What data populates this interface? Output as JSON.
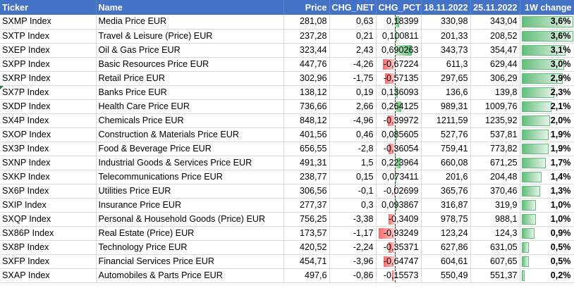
{
  "colors": {
    "header_bg": "#4472c4",
    "positive_bar": "#63be7b",
    "negative_bar": "#f8696b"
  },
  "headers": [
    "Ticker",
    "Name",
    "Price",
    "CHG_NET",
    "CHG_PCT_",
    "18.11.2022",
    "25.11.2022",
    "1W change"
  ],
  "rows": [
    {
      "ticker": "SXMP Index",
      "name": "Media Price EUR",
      "price": "281,08",
      "chg_net": "0,63",
      "chg_pct": "0,18399",
      "chg_pct_value": 0.18399,
      "d1": "330,98",
      "d2": "343,04",
      "w_change": "3,6%",
      "w_change_value": 3.6
    },
    {
      "ticker": "SXTP Index",
      "name": "Travel & Leisure (Price) EUR",
      "price": "237,28",
      "chg_net": "0,21",
      "chg_pct": "0,100811",
      "chg_pct_value": 0.100811,
      "d1": "201,33",
      "d2": "208,52",
      "w_change": "3,6%",
      "w_change_value": 3.6
    },
    {
      "ticker": "SXEP Index",
      "name": "Oil & Gas Price EUR",
      "price": "323,44",
      "chg_net": "2,43",
      "chg_pct": "0,690263",
      "chg_pct_value": 0.690263,
      "d1": "343,73",
      "d2": "354,47",
      "w_change": "3,1%",
      "w_change_value": 3.1
    },
    {
      "ticker": "SXPP Index",
      "name": "Basic Resources Price EUR",
      "price": "447,76",
      "chg_net": "-4,26",
      "chg_pct": "-0,67224",
      "chg_pct_value": -0.67224,
      "d1": "611,3",
      "d2": "629,44",
      "w_change": "3,0%",
      "w_change_value": 3.0
    },
    {
      "ticker": "SXRP Index",
      "name": "Retail Price EUR",
      "price": "302,96",
      "chg_net": "-1,75",
      "chg_pct": "-0,57135",
      "chg_pct_value": -0.57135,
      "d1": "297,65",
      "d2": "306,29",
      "w_change": "2,9%",
      "w_change_value": 2.9
    },
    {
      "ticker": "SX7P Index",
      "name": "Banks Price EUR",
      "price": "138,12",
      "chg_net": "0,19",
      "chg_pct": "0,136093",
      "chg_pct_value": 0.136093,
      "d1": "136,6",
      "d2": "139,8",
      "w_change": "2,3%",
      "w_change_value": 2.3
    },
    {
      "ticker": "SXDP Index",
      "name": "Health Care Price EUR",
      "price": "736,66",
      "chg_net": "2,66",
      "chg_pct": "0,264125",
      "chg_pct_value": 0.264125,
      "d1": "989,31",
      "d2": "1009,76",
      "w_change": "2,1%",
      "w_change_value": 2.1
    },
    {
      "ticker": "SX4P Index",
      "name": "Chemicals Price EUR",
      "price": "848,12",
      "chg_net": "-4,96",
      "chg_pct": "-0,39972",
      "chg_pct_value": -0.39972,
      "d1": "1211,59",
      "d2": "1235,92",
      "w_change": "2,0%",
      "w_change_value": 2.0
    },
    {
      "ticker": "SXOP Index",
      "name": "Construction & Materials Price EUR",
      "price": "401,56",
      "chg_net": "0,46",
      "chg_pct": "0,085605",
      "chg_pct_value": 0.085605,
      "d1": "527,76",
      "d2": "537,81",
      "w_change": "1,9%",
      "w_change_value": 1.9
    },
    {
      "ticker": "SX3P Index",
      "name": "Food & Beverage Price EUR",
      "price": "656,55",
      "chg_net": "-2,8",
      "chg_pct": "-0,36054",
      "chg_pct_value": -0.36054,
      "d1": "759,41",
      "d2": "773,82",
      "w_change": "1,9%",
      "w_change_value": 1.9
    },
    {
      "ticker": "SXNP Index",
      "name": "Industrial Goods & Services Price EUR",
      "price": "491,31",
      "chg_net": "1,5",
      "chg_pct": "0,223964",
      "chg_pct_value": 0.223964,
      "d1": "660,08",
      "d2": "671,25",
      "w_change": "1,7%",
      "w_change_value": 1.7
    },
    {
      "ticker": "SXKP Index",
      "name": "Telecommunications Price EUR",
      "price": "238,77",
      "chg_net": "0,15",
      "chg_pct": "0,073411",
      "chg_pct_value": 0.073411,
      "d1": "201,6",
      "d2": "204,48",
      "w_change": "1,4%",
      "w_change_value": 1.4
    },
    {
      "ticker": "SX6P Index",
      "name": "Utilities Price EUR",
      "price": "306,56",
      "chg_net": "-0,1",
      "chg_pct": "-0,02699",
      "chg_pct_value": -0.02699,
      "d1": "365,76",
      "d2": "370,46",
      "w_change": "1,3%",
      "w_change_value": 1.3
    },
    {
      "ticker": "SXIP Index",
      "name": "Insurance Price EUR",
      "price": "277,37",
      "chg_net": "0,3",
      "chg_pct": "0,093867",
      "chg_pct_value": 0.093867,
      "d1": "316,87",
      "d2": "319,9",
      "w_change": "1,0%",
      "w_change_value": 1.0
    },
    {
      "ticker": "SXQP Index",
      "name": "Personal & Household Goods (Price) EUR",
      "price": "756,25",
      "chg_net": "-3,38",
      "chg_pct": "-0,3409",
      "chg_pct_value": -0.3409,
      "d1": "978,75",
      "d2": "988,1",
      "w_change": "1,0%",
      "w_change_value": 1.0
    },
    {
      "ticker": "SX86P Index",
      "name": "Real Estate (Price) EUR",
      "price": "173,57",
      "chg_net": "-1,17",
      "chg_pct": "-0,93249",
      "chg_pct_value": -0.93249,
      "d1": "123,24",
      "d2": "124,3",
      "w_change": "0,9%",
      "w_change_value": 0.9
    },
    {
      "ticker": "SX8P Index",
      "name": "Technology Price EUR",
      "price": "420,52",
      "chg_net": "-2,24",
      "chg_pct": "-0,35371",
      "chg_pct_value": -0.35371,
      "d1": "627,86",
      "d2": "631,05",
      "w_change": "0,5%",
      "w_change_value": 0.5
    },
    {
      "ticker": "SXFP Index",
      "name": "Financial Services Price EUR",
      "price": "454,71",
      "chg_net": "-3,96",
      "chg_pct": "-0,64747",
      "chg_pct_value": -0.64747,
      "d1": "604,61",
      "d2": "607,65",
      "w_change": "0,5%",
      "w_change_value": 0.5
    },
    {
      "ticker": "SXAP Index",
      "name": "Automobiles & Parts Price EUR",
      "price": "497,6",
      "chg_net": "-0,86",
      "chg_pct": "-0,15573",
      "chg_pct_value": -0.15573,
      "d1": "550,49",
      "d2": "551,37",
      "w_change": "0,2%",
      "w_change_value": 0.2
    }
  ]
}
